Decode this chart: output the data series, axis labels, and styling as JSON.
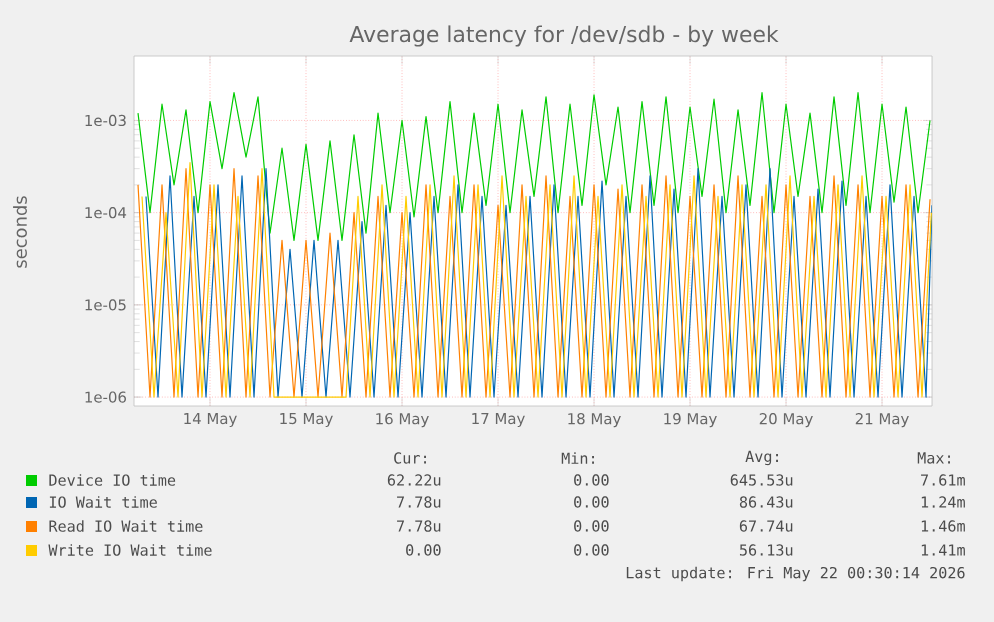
{
  "chart_data": {
    "type": "line",
    "title": "Average latency for /dev/sdb - by week",
    "ylabel": "seconds",
    "log": "y",
    "grid": true,
    "legend": "bottom",
    "line_style": "solid",
    "xlim": [
      "2026-05-13T17:00",
      "2026-05-22T00:30"
    ],
    "xticks": [
      {
        "value": "2026-05-14T12:00",
        "label": "14 May"
      },
      {
        "value": "2026-05-15T12:00",
        "label": "15 May"
      },
      {
        "value": "2026-05-16T12:00",
        "label": "16 May"
      },
      {
        "value": "2026-05-17T12:00",
        "label": "17 May"
      },
      {
        "value": "2026-05-18T12:00",
        "label": "18 May"
      },
      {
        "value": "2026-05-19T12:00",
        "label": "19 May"
      },
      {
        "value": "2026-05-20T12:00",
        "label": "20 May"
      },
      {
        "value": "2026-05-21T12:00",
        "label": "21 May"
      }
    ],
    "ylim": [
      8e-07,
      0.005
    ],
    "yticks": [
      {
        "value": 1e-06,
        "label": "1e-06"
      },
      {
        "value": 1e-05,
        "label": "1e-05"
      },
      {
        "value": 0.0001,
        "label": "1e-04"
      },
      {
        "value": 0.001,
        "label": "1e-03"
      }
    ],
    "x": [
      "2026-05-13T18:00",
      "2026-05-13T21:00",
      "2026-05-14T00:00",
      "2026-05-14T03:00",
      "2026-05-14T06:00",
      "2026-05-14T09:00",
      "2026-05-14T12:00",
      "2026-05-14T15:00",
      "2026-05-14T18:00",
      "2026-05-14T21:00",
      "2026-05-15T00:00",
      "2026-05-15T03:00",
      "2026-05-15T06:00",
      "2026-05-15T09:00",
      "2026-05-15T12:00",
      "2026-05-15T15:00",
      "2026-05-15T18:00",
      "2026-05-15T21:00",
      "2026-05-16T00:00",
      "2026-05-16T03:00",
      "2026-05-16T06:00",
      "2026-05-16T09:00",
      "2026-05-16T12:00",
      "2026-05-16T15:00",
      "2026-05-16T18:00",
      "2026-05-16T21:00",
      "2026-05-17T00:00",
      "2026-05-17T03:00",
      "2026-05-17T06:00",
      "2026-05-17T09:00",
      "2026-05-17T12:00",
      "2026-05-17T15:00",
      "2026-05-17T18:00",
      "2026-05-17T21:00",
      "2026-05-18T00:00",
      "2026-05-18T03:00",
      "2026-05-18T06:00",
      "2026-05-18T09:00",
      "2026-05-18T12:00",
      "2026-05-18T15:00",
      "2026-05-18T18:00",
      "2026-05-18T21:00",
      "2026-05-19T00:00",
      "2026-05-19T03:00",
      "2026-05-19T06:00",
      "2026-05-19T09:00",
      "2026-05-19T12:00",
      "2026-05-19T15:00",
      "2026-05-19T18:00",
      "2026-05-19T21:00",
      "2026-05-20T00:00",
      "2026-05-20T03:00",
      "2026-05-20T06:00",
      "2026-05-20T09:00",
      "2026-05-20T12:00",
      "2026-05-20T15:00",
      "2026-05-20T18:00",
      "2026-05-20T21:00",
      "2026-05-21T00:00",
      "2026-05-21T03:00",
      "2026-05-21T06:00",
      "2026-05-21T09:00",
      "2026-05-21T12:00",
      "2026-05-21T15:00",
      "2026-05-21T18:00",
      "2026-05-21T21:00",
      "2026-05-22T00:00"
    ],
    "series": [
      {
        "name": "Device IO time",
        "color": "#00cc00",
        "values": [
          0.0012,
          0.0001,
          0.0015,
          0.0002,
          0.0013,
          0.0001,
          0.0016,
          0.0003,
          0.002,
          0.0004,
          0.0018,
          6e-05,
          0.0005,
          5e-05,
          0.00055,
          5e-05,
          0.0006,
          5e-05,
          0.0007,
          6e-05,
          0.0012,
          0.0001,
          0.001,
          9e-05,
          0.0011,
          0.0001,
          0.0016,
          0.0001,
          0.0012,
          0.00012,
          0.0015,
          0.0001,
          0.0013,
          0.00015,
          0.0018,
          0.0001,
          0.0015,
          0.00012,
          0.0019,
          0.0002,
          0.0014,
          0.0001,
          0.0016,
          0.00012,
          0.0018,
          0.0001,
          0.0014,
          0.00015,
          0.0017,
          0.0001,
          0.0013,
          0.00012,
          0.002,
          0.0001,
          0.0015,
          0.00015,
          0.0012,
          0.0001,
          0.0018,
          0.00012,
          0.002,
          0.0001,
          0.0015,
          0.00013,
          0.0014,
          0.0001,
          0.001
        ]
      },
      {
        "name": "IO Wait time",
        "color": "#0066b3",
        "x": [
          "2026-05-13T20:00",
          "2026-05-13T23:00",
          "2026-05-14T02:00",
          "2026-05-14T05:00",
          "2026-05-14T08:00",
          "2026-05-14T11:00",
          "2026-05-14T14:00",
          "2026-05-14T17:00",
          "2026-05-14T20:00",
          "2026-05-14T23:00",
          "2026-05-15T02:00",
          "2026-05-15T05:00",
          "2026-05-15T08:00",
          "2026-05-15T11:00",
          "2026-05-15T14:00",
          "2026-05-15T17:00",
          "2026-05-15T20:00",
          "2026-05-15T23:00",
          "2026-05-16T02:00",
          "2026-05-16T05:00",
          "2026-05-16T08:00",
          "2026-05-16T11:00",
          "2026-05-16T14:00",
          "2026-05-16T17:00",
          "2026-05-16T20:00",
          "2026-05-16T23:00",
          "2026-05-17T02:00",
          "2026-05-17T05:00",
          "2026-05-17T08:00",
          "2026-05-17T11:00",
          "2026-05-17T14:00",
          "2026-05-17T17:00",
          "2026-05-17T20:00",
          "2026-05-17T23:00",
          "2026-05-18T02:00",
          "2026-05-18T05:00",
          "2026-05-18T08:00",
          "2026-05-18T11:00",
          "2026-05-18T14:00",
          "2026-05-18T17:00",
          "2026-05-18T20:00",
          "2026-05-18T23:00",
          "2026-05-19T02:00",
          "2026-05-19T05:00",
          "2026-05-19T08:00",
          "2026-05-19T11:00",
          "2026-05-19T14:00",
          "2026-05-19T17:00",
          "2026-05-19T20:00",
          "2026-05-19T23:00",
          "2026-05-20T02:00",
          "2026-05-20T05:00",
          "2026-05-20T08:00",
          "2026-05-20T11:00",
          "2026-05-20T14:00",
          "2026-05-20T17:00",
          "2026-05-20T20:00",
          "2026-05-20T23:00",
          "2026-05-21T02:00",
          "2026-05-21T05:00",
          "2026-05-21T08:00",
          "2026-05-21T11:00",
          "2026-05-21T14:00",
          "2026-05-21T17:00",
          "2026-05-21T20:00",
          "2026-05-21T23:00",
          "2026-05-22T00:30"
        ],
        "values": [
          0.00015,
          1e-06,
          0.00025,
          1e-06,
          0.00015,
          1e-06,
          0.0002,
          1e-06,
          0.00025,
          1e-06,
          0.0003,
          1e-06,
          4e-05,
          1e-06,
          5e-05,
          1e-06,
          5e-05,
          1e-06,
          8e-05,
          1e-06,
          0.00012,
          1e-06,
          0.0001,
          1e-06,
          0.00015,
          1e-06,
          0.0002,
          1e-06,
          0.00015,
          1e-06,
          0.00012,
          1e-06,
          0.00015,
          1e-06,
          0.0002,
          1e-06,
          0.00015,
          1e-06,
          0.00022,
          1e-06,
          0.00015,
          1e-06,
          0.00025,
          1e-06,
          0.00018,
          1e-06,
          0.0003,
          1e-06,
          0.00015,
          1e-06,
          0.0002,
          1e-06,
          0.0003,
          1e-06,
          0.00015,
          1e-06,
          0.00018,
          1e-06,
          0.00022,
          1e-06,
          0.00015,
          1e-06,
          0.0002,
          1e-06,
          0.00015,
          1e-06,
          0.00012
        ]
      },
      {
        "name": "Read IO Wait time",
        "color": "#ff8000",
        "values": [
          0.0002,
          1e-06,
          0.0002,
          1e-06,
          0.0003,
          1e-06,
          0.0002,
          1e-06,
          0.0003,
          1e-06,
          0.00025,
          1e-06,
          5e-05,
          1e-06,
          5e-05,
          1e-06,
          6e-05,
          1e-06,
          0.0001,
          1e-06,
          0.00015,
          1e-06,
          0.0001,
          1e-06,
          0.0002,
          1e-06,
          0.00015,
          1e-06,
          0.0002,
          1e-06,
          0.00012,
          1e-06,
          0.0002,
          1e-06,
          0.00025,
          1e-06,
          0.00015,
          1e-06,
          0.0002,
          1e-06,
          0.00018,
          1e-06,
          0.0002,
          1e-06,
          0.00025,
          1e-06,
          0.00015,
          1e-06,
          0.0002,
          1e-06,
          0.00025,
          1e-06,
          0.00015,
          1e-06,
          0.0002,
          1e-06,
          0.00015,
          1e-06,
          0.00025,
          1e-06,
          0.0002,
          1e-06,
          0.00015,
          1e-06,
          0.0002,
          1e-06,
          0.00014
        ]
      },
      {
        "name": "Write IO Wait time",
        "color": "#ffcc00",
        "x": [
          "2026-05-13T19:00",
          "2026-05-13T22:00",
          "2026-05-14T01:00",
          "2026-05-14T04:00",
          "2026-05-14T07:00",
          "2026-05-14T10:00",
          "2026-05-14T13:00",
          "2026-05-14T16:00",
          "2026-05-14T19:00",
          "2026-05-14T22:00",
          "2026-05-15T01:00",
          "2026-05-15T04:00",
          "2026-05-15T07:00",
          "2026-05-15T10:00",
          "2026-05-15T13:00",
          "2026-05-15T16:00",
          "2026-05-15T19:00",
          "2026-05-15T22:00",
          "2026-05-16T01:00",
          "2026-05-16T04:00",
          "2026-05-16T07:00",
          "2026-05-16T10:00",
          "2026-05-16T13:00",
          "2026-05-16T16:00",
          "2026-05-16T19:00",
          "2026-05-16T22:00",
          "2026-05-17T01:00",
          "2026-05-17T04:00",
          "2026-05-17T07:00",
          "2026-05-17T10:00",
          "2026-05-17T13:00",
          "2026-05-17T16:00",
          "2026-05-17T19:00",
          "2026-05-17T22:00",
          "2026-05-18T01:00",
          "2026-05-18T04:00",
          "2026-05-18T07:00",
          "2026-05-18T10:00",
          "2026-05-18T13:00",
          "2026-05-18T16:00",
          "2026-05-18T19:00",
          "2026-05-18T22:00",
          "2026-05-19T01:00",
          "2026-05-19T04:00",
          "2026-05-19T07:00",
          "2026-05-19T10:00",
          "2026-05-19T13:00",
          "2026-05-19T16:00",
          "2026-05-19T19:00",
          "2026-05-19T22:00",
          "2026-05-20T01:00",
          "2026-05-20T04:00",
          "2026-05-20T07:00",
          "2026-05-20T10:00",
          "2026-05-20T13:00",
          "2026-05-20T16:00",
          "2026-05-20T19:00",
          "2026-05-20T22:00",
          "2026-05-21T01:00",
          "2026-05-21T04:00",
          "2026-05-21T07:00",
          "2026-05-21T10:00",
          "2026-05-21T13:00",
          "2026-05-21T16:00",
          "2026-05-21T19:00",
          "2026-05-21T22:00",
          "2026-05-22T00:20"
        ],
        "values": [
          0.00015,
          1e-06,
          0.0001,
          1e-06,
          0.00035,
          1e-06,
          0.0002,
          1e-06,
          0.00015,
          1e-06,
          0.0003,
          1e-06,
          1e-06,
          1e-06,
          1e-06,
          1e-06,
          1e-06,
          1e-06,
          0.00015,
          1e-06,
          0.0002,
          1e-06,
          0.00015,
          1e-06,
          0.0002,
          1e-06,
          0.00025,
          1e-06,
          0.0002,
          1e-06,
          0.00025,
          1e-06,
          0.00015,
          1e-06,
          0.0002,
          1e-06,
          0.00025,
          1e-06,
          0.00015,
          1e-06,
          0.0002,
          1e-06,
          0.00015,
          1e-06,
          0.0002,
          1e-06,
          0.00025,
          1e-06,
          0.00015,
          1e-06,
          0.0002,
          1e-06,
          0.0002,
          1e-06,
          0.00025,
          1e-06,
          0.00015,
          1e-06,
          0.0002,
          1e-06,
          0.00025,
          1e-06,
          0.00015,
          1e-06,
          0.0002,
          1e-06,
          0.0001
        ]
      }
    ],
    "annotations": [
      "Cur:",
      "Min:",
      "Avg:",
      "Max:",
      "62.22u",
      "0.00",
      "645.53u",
      "7.61m",
      "7.78u",
      "0.00",
      "86.43u",
      "1.24m",
      "7.78u",
      "0.00",
      "67.74u",
      "1.46m",
      "0.00",
      "0.00",
      "56.13u",
      "1.41m",
      "Last update: Fri May 22 00:30:14 2026"
    ]
  }
}
